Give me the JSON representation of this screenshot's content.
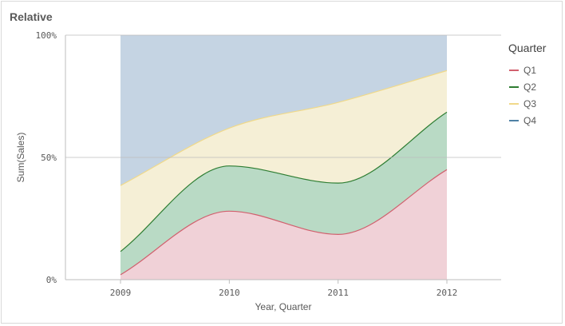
{
  "chart_data": {
    "type": "area",
    "stacking": "percent",
    "title": "Relative",
    "xlabel": "Year, Quarter",
    "ylabel": "Sum(Sales)",
    "categories": [
      "2009",
      "2010",
      "2011",
      "2012"
    ],
    "y_tick_labels": [
      "0%",
      "50%",
      "100%"
    ],
    "ylim": [
      0,
      100
    ],
    "legend": {
      "title": "Quarter",
      "position": "right"
    },
    "series": [
      {
        "name": "Q1",
        "values": [
          2,
          28,
          18.5,
          45
        ],
        "color": "#d1606e",
        "fill": "#f0d1d7"
      },
      {
        "name": "Q2",
        "values": [
          9.5,
          18.5,
          21,
          23.5
        ],
        "color": "#2e7d32",
        "fill": "#b9dac5"
      },
      {
        "name": "Q3",
        "values": [
          27,
          15.5,
          33,
          17
        ],
        "color": "#f0d98a",
        "fill": "#f5efd6"
      },
      {
        "name": "Q4",
        "values": [
          61.5,
          38,
          27.5,
          14.5
        ],
        "color": "#4f81a5",
        "fill": "#c5d4e3"
      }
    ]
  }
}
